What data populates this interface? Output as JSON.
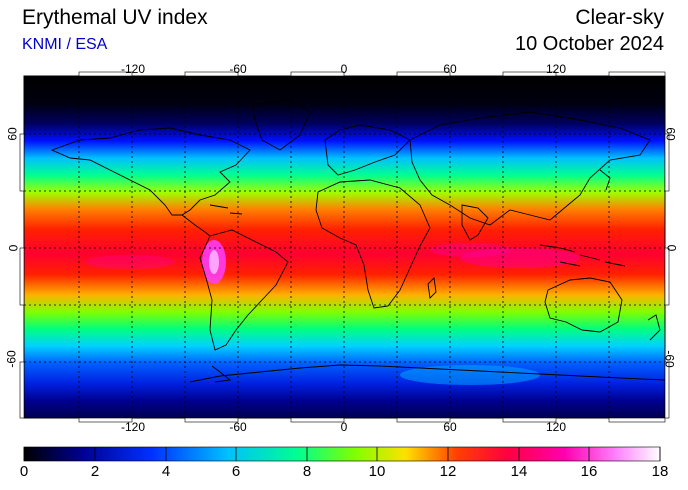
{
  "header": {
    "title": "Erythemal UV index",
    "subtitle": "KNMI / ESA",
    "mode": "Clear-sky",
    "date": "10 October 2024"
  },
  "map": {
    "lon_ticks": [
      "-120",
      "-60",
      "0",
      "60",
      "120"
    ],
    "lat_ticks": [
      "60",
      "0",
      "-60"
    ]
  },
  "colorbar": {
    "labels": [
      "0",
      "2",
      "4",
      "6",
      "8",
      "10",
      "12",
      "14",
      "16",
      "18"
    ],
    "colors": [
      "#000000",
      "#000090",
      "#0030ff",
      "#00c0ff",
      "#00ff90",
      "#80ff00",
      "#ffe000",
      "#ff4000",
      "#ff0040",
      "#ff00b0",
      "#ff80ff",
      "#ffffff"
    ]
  }
}
